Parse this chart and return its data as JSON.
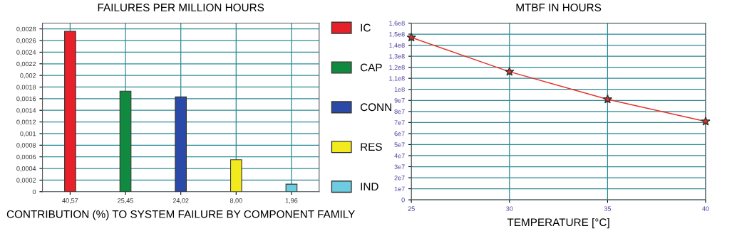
{
  "chart_data": [
    {
      "type": "bar",
      "title": "FAILURES PER MILLION HOURS",
      "xlabel": "CONTRIBUTION (%) TO SYSTEM FAILURE BY COMPONENT FAMILY",
      "categories": [
        "40,57",
        "25,45",
        "24,02",
        "8,00",
        "1,96"
      ],
      "series": [
        {
          "name": "IC",
          "color": "#e8202a",
          "values": [
            0.00276,
            null,
            null,
            null,
            null
          ]
        },
        {
          "name": "CAP",
          "color": "#108a3e",
          "values": [
            null,
            0.00173,
            null,
            null,
            null
          ]
        },
        {
          "name": "CONN",
          "color": "#2b4aa8",
          "values": [
            null,
            null,
            0.00163,
            null,
            null
          ]
        },
        {
          "name": "RES",
          "color": "#f2ea1c",
          "values": [
            null,
            null,
            null,
            0.00055,
            null
          ]
        },
        {
          "name": "IND",
          "color": "#6ccde0",
          "values": [
            null,
            null,
            null,
            null,
            0.00013
          ]
        }
      ],
      "ylim": [
        0,
        0.0029
      ],
      "yticks": [
        {
          "value": 0,
          "label": "0"
        },
        {
          "value": 0.0002,
          "label": "0,0002"
        },
        {
          "value": 0.0004,
          "label": "0,0004"
        },
        {
          "value": 0.0006,
          "label": "0,0006"
        },
        {
          "value": 0.0008,
          "label": "0,0008"
        },
        {
          "value": 0.001,
          "label": "0,001"
        },
        {
          "value": 0.0012,
          "label": "0,0012"
        },
        {
          "value": 0.0014,
          "label": "0,0014"
        },
        {
          "value": 0.0016,
          "label": "0,0016"
        },
        {
          "value": 0.0018,
          "label": "0,0018"
        },
        {
          "value": 0.002,
          "label": "0,002"
        },
        {
          "value": 0.0022,
          "label": "0,0022"
        },
        {
          "value": 0.0024,
          "label": "0,0024"
        },
        {
          "value": 0.0026,
          "label": "0,0026"
        },
        {
          "value": 0.0028,
          "label": "0,0028"
        }
      ],
      "grid": true,
      "legend": "right"
    },
    {
      "type": "line",
      "title": "MTBF IN HOURS",
      "xlabel": "TEMPERATURE [°C]",
      "x": [
        25,
        30,
        35,
        40
      ],
      "series": [
        {
          "color": "#e8302a",
          "values": [
            147000000,
            116000000,
            91000000,
            71000000
          ]
        }
      ],
      "xlim": [
        25,
        40
      ],
      "xticks": [
        25,
        30,
        35,
        40
      ],
      "ylim": [
        0,
        160000000
      ],
      "yticks": [
        {
          "value": 0,
          "label": "0"
        },
        {
          "value": 10000000,
          "label": "1e7"
        },
        {
          "value": 20000000,
          "label": "2e7"
        },
        {
          "value": 30000000,
          "label": "3e7"
        },
        {
          "value": 40000000,
          "label": "4e7"
        },
        {
          "value": 50000000,
          "label": "5e7"
        },
        {
          "value": 60000000,
          "label": "6e7"
        },
        {
          "value": 70000000,
          "label": "7e7"
        },
        {
          "value": 80000000,
          "label": "8e7"
        },
        {
          "value": 90000000,
          "label": "9e7"
        },
        {
          "value": 100000000,
          "label": "1e8"
        },
        {
          "value": 110000000,
          "label": "1,1e8"
        },
        {
          "value": 120000000,
          "label": "1,2e8"
        },
        {
          "value": 130000000,
          "label": "1,3e8"
        },
        {
          "value": 140000000,
          "label": "1,4e8"
        },
        {
          "value": 150000000,
          "label": "1,5e8"
        },
        {
          "value": 160000000,
          "label": "1,6e8"
        }
      ],
      "grid": true,
      "marker": "star",
      "line_style": "solid"
    }
  ]
}
